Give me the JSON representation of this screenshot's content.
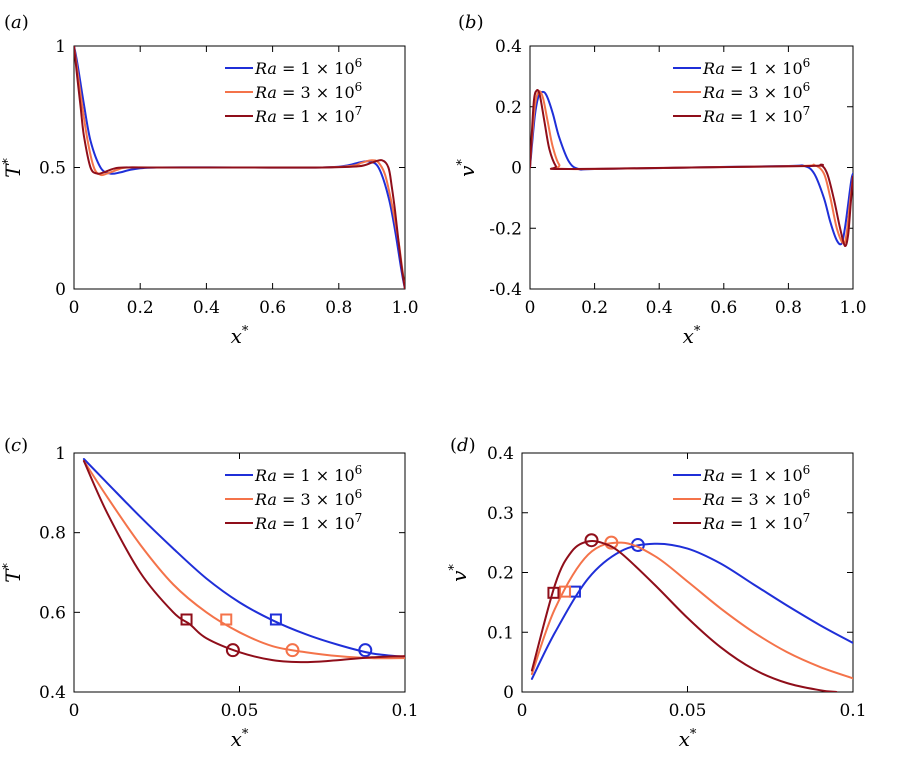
{
  "colors": {
    "ra1e6": "#1f2fd8",
    "ra3e6": "#f4734a",
    "ra1e7": "#8f0e1a"
  },
  "legend_entries": [
    {
      "label": "Ra = 1 × 10^6",
      "color": "#1f2fd8"
    },
    {
      "label": "Ra = 3 × 10^6",
      "color": "#f4734a"
    },
    {
      "label": "Ra = 1 × 10^7",
      "color": "#8f0e1a"
    }
  ],
  "chart_data": [
    {
      "panel": "(a)",
      "type": "line",
      "xlabel": "x*",
      "ylabel": "T*",
      "xlim": [
        0,
        1
      ],
      "ylim": [
        0,
        1
      ],
      "xticks": [
        0,
        0.2,
        0.4,
        0.6,
        0.8,
        1.0
      ],
      "xtick_labels": [
        "0",
        "0.2",
        "0.4",
        "0.6",
        "0.8",
        "1.0"
      ],
      "yticks": [
        0,
        0.5,
        1
      ],
      "ytick_labels": [
        "0",
        "0.5",
        "1"
      ],
      "legend_position": "top-right",
      "series": [
        {
          "name": "Ra = 1 × 10^6",
          "color": "#1f2fd8",
          "x": [
            0,
            0.01,
            0.03,
            0.05,
            0.08,
            0.11,
            0.14,
            0.18,
            0.25,
            0.5,
            0.75,
            0.82,
            0.86,
            0.89,
            0.92,
            0.95,
            0.97,
            0.99,
            1.0
          ],
          "y": [
            1.0,
            0.93,
            0.76,
            0.61,
            0.5,
            0.475,
            0.48,
            0.493,
            0.5,
            0.5,
            0.5,
            0.507,
            0.52,
            0.525,
            0.5,
            0.38,
            0.24,
            0.07,
            0.0
          ]
        },
        {
          "name": "Ra = 3 × 10^6",
          "color": "#f4734a",
          "x": [
            0,
            0.01,
            0.02,
            0.04,
            0.06,
            0.08,
            0.1,
            0.13,
            0.16,
            0.25,
            0.5,
            0.75,
            0.84,
            0.87,
            0.9,
            0.92,
            0.94,
            0.96,
            0.98,
            0.99,
            1.0
          ],
          "y": [
            1.0,
            0.9,
            0.8,
            0.62,
            0.5,
            0.47,
            0.475,
            0.49,
            0.5,
            0.5,
            0.5,
            0.5,
            0.507,
            0.52,
            0.53,
            0.52,
            0.47,
            0.35,
            0.2,
            0.1,
            0.0
          ]
        },
        {
          "name": "Ra = 1 × 10^7",
          "color": "#8f0e1a",
          "x": [
            0,
            0.01,
            0.02,
            0.03,
            0.05,
            0.07,
            0.09,
            0.12,
            0.15,
            0.25,
            0.5,
            0.75,
            0.86,
            0.9,
            0.93,
            0.95,
            0.96,
            0.97,
            0.98,
            0.99,
            1.0
          ],
          "y": [
            1.0,
            0.87,
            0.75,
            0.63,
            0.5,
            0.475,
            0.48,
            0.495,
            0.5,
            0.5,
            0.5,
            0.5,
            0.505,
            0.52,
            0.53,
            0.5,
            0.42,
            0.32,
            0.2,
            0.09,
            0.0
          ]
        }
      ]
    },
    {
      "panel": "(b)",
      "type": "line",
      "xlabel": "x*",
      "ylabel": "v*",
      "xlim": [
        0,
        1
      ],
      "ylim": [
        -0.4,
        0.4
      ],
      "xticks": [
        0,
        0.2,
        0.4,
        0.6,
        0.8,
        1.0
      ],
      "xtick_labels": [
        "0",
        "0.2",
        "0.4",
        "0.6",
        "0.8",
        "1.0"
      ],
      "yticks": [
        -0.4,
        -0.2,
        0,
        0.2,
        0.4
      ],
      "ytick_labels": [
        "-0.4",
        "-0.2",
        "0",
        "0.2",
        "0.4"
      ],
      "legend_position": "top-right",
      "series": [
        {
          "name": "Ra = 1 × 10^6",
          "color": "#1f2fd8",
          "x": [
            0,
            0.005,
            0.015,
            0.025,
            0.035,
            0.05,
            0.07,
            0.09,
            0.12,
            0.15,
            0.2,
            0.5,
            0.8,
            0.85,
            0.88,
            0.91,
            0.93,
            0.95,
            0.965,
            0.975,
            0.985,
            0.995,
            1.0
          ],
          "y": [
            0,
            0.06,
            0.17,
            0.23,
            0.248,
            0.24,
            0.18,
            0.1,
            0.02,
            -0.005,
            -0.005,
            0,
            0.005,
            0.005,
            -0.02,
            -0.1,
            -0.18,
            -0.24,
            -0.25,
            -0.2,
            -0.12,
            -0.04,
            -0.02
          ]
        },
        {
          "name": "Ra = 3 × 10^6",
          "color": "#f4734a",
          "x": [
            0,
            0.005,
            0.015,
            0.027,
            0.04,
            0.055,
            0.07,
            0.09,
            0.12,
            0.5,
            0.84,
            0.88,
            0.91,
            0.93,
            0.95,
            0.97,
            0.98,
            0.99,
            1.0
          ],
          "y": [
            0,
            0.08,
            0.2,
            0.25,
            0.23,
            0.15,
            0.07,
            0.01,
            -0.005,
            0,
            0.005,
            0.008,
            -0.02,
            -0.1,
            -0.2,
            -0.25,
            -0.22,
            -0.12,
            -0.03
          ]
        },
        {
          "name": "Ra = 1 × 10^7",
          "color": "#8f0e1a",
          "x": [
            0,
            0.005,
            0.012,
            0.02,
            0.03,
            0.045,
            0.06,
            0.08,
            0.1,
            0.5,
            0.87,
            0.9,
            0.92,
            0.94,
            0.96,
            0.975,
            0.985,
            0.993,
            1.0
          ],
          "y": [
            0,
            0.1,
            0.22,
            0.253,
            0.24,
            0.15,
            0.06,
            0.005,
            -0.005,
            0,
            0.005,
            0.008,
            -0.02,
            -0.1,
            -0.2,
            -0.258,
            -0.22,
            -0.12,
            -0.03
          ]
        }
      ]
    },
    {
      "panel": "(c)",
      "type": "line",
      "xlabel": "x*",
      "ylabel": "T*",
      "xlim": [
        0,
        0.1
      ],
      "ylim": [
        0.4,
        1
      ],
      "xticks": [
        0,
        0.05,
        0.1
      ],
      "xtick_labels": [
        "0",
        "0.05",
        "0.1"
      ],
      "yticks": [
        0.4,
        0.6,
        0.8,
        1
      ],
      "ytick_labels": [
        "0.4",
        "0.6",
        "0.8",
        "1"
      ],
      "legend_position": "top-right",
      "series": [
        {
          "name": "Ra = 1 × 10^6",
          "color": "#1f2fd8",
          "x": [
            0.003,
            0.01,
            0.02,
            0.03,
            0.04,
            0.05,
            0.06,
            0.07,
            0.08,
            0.09,
            0.1
          ],
          "y": [
            0.985,
            0.925,
            0.84,
            0.76,
            0.685,
            0.625,
            0.58,
            0.545,
            0.518,
            0.497,
            0.488
          ],
          "markers": {
            "square": [
              0.061,
              0.582
            ],
            "circle": [
              0.088,
              0.505
            ]
          }
        },
        {
          "name": "Ra = 3 × 10^6",
          "color": "#f4734a",
          "x": [
            0.003,
            0.01,
            0.02,
            0.03,
            0.04,
            0.05,
            0.06,
            0.07,
            0.08,
            0.09,
            0.1
          ],
          "y": [
            0.98,
            0.89,
            0.77,
            0.67,
            0.6,
            0.55,
            0.515,
            0.5,
            0.49,
            0.485,
            0.485
          ],
          "markers": {
            "square": [
              0.046,
              0.582
            ],
            "circle": [
              0.066,
              0.505
            ]
          }
        },
        {
          "name": "Ra = 1 × 10^7",
          "color": "#8f0e1a",
          "x": [
            0.003,
            0.01,
            0.02,
            0.03,
            0.035,
            0.04,
            0.05,
            0.06,
            0.07,
            0.08,
            0.09,
            0.1
          ],
          "y": [
            0.98,
            0.85,
            0.7,
            0.6,
            0.57,
            0.535,
            0.5,
            0.48,
            0.475,
            0.48,
            0.487,
            0.49
          ],
          "markers": {
            "square": [
              0.034,
              0.582
            ],
            "circle": [
              0.048,
              0.505
            ]
          }
        }
      ]
    },
    {
      "panel": "(d)",
      "type": "line",
      "xlabel": "x*",
      "ylabel": "v*",
      "xlim": [
        0,
        0.1
      ],
      "ylim": [
        0,
        0.4
      ],
      "xticks": [
        0,
        0.05,
        0.1
      ],
      "xtick_labels": [
        "0",
        "0.05",
        "0.1"
      ],
      "yticks": [
        0,
        0.1,
        0.2,
        0.3,
        0.4
      ],
      "ytick_labels": [
        "0",
        "0.1",
        "0.2",
        "0.3",
        "0.4"
      ],
      "legend_position": "top-right",
      "series": [
        {
          "name": "Ra = 1 × 10^6",
          "color": "#1f2fd8",
          "x": [
            0.003,
            0.01,
            0.02,
            0.03,
            0.04,
            0.05,
            0.06,
            0.07,
            0.08,
            0.09,
            0.1
          ],
          "y": [
            0.022,
            0.1,
            0.19,
            0.236,
            0.248,
            0.24,
            0.215,
            0.18,
            0.145,
            0.112,
            0.082
          ],
          "markers": {
            "square": [
              0.016,
              0.168
            ],
            "circle": [
              0.035,
              0.246
            ]
          }
        },
        {
          "name": "Ra = 3 × 10^6",
          "color": "#f4734a",
          "x": [
            0.003,
            0.01,
            0.02,
            0.03,
            0.04,
            0.05,
            0.06,
            0.07,
            0.08,
            0.09,
            0.1
          ],
          "y": [
            0.03,
            0.14,
            0.23,
            0.25,
            0.228,
            0.185,
            0.14,
            0.1,
            0.067,
            0.042,
            0.023
          ],
          "markers": {
            "square": [
              0.013,
              0.168
            ],
            "circle": [
              0.027,
              0.25
            ]
          }
        },
        {
          "name": "Ra = 1 × 10^7",
          "color": "#8f0e1a",
          "x": [
            0.003,
            0.01,
            0.015,
            0.02,
            0.025,
            0.03,
            0.04,
            0.05,
            0.06,
            0.07,
            0.08,
            0.09,
            0.095
          ],
          "y": [
            0.036,
            0.18,
            0.235,
            0.252,
            0.248,
            0.232,
            0.18,
            0.124,
            0.075,
            0.038,
            0.015,
            0.003,
            0.0
          ],
          "markers": {
            "square": [
              0.0095,
              0.166
            ],
            "circle": [
              0.021,
              0.254
            ]
          }
        }
      ]
    }
  ]
}
